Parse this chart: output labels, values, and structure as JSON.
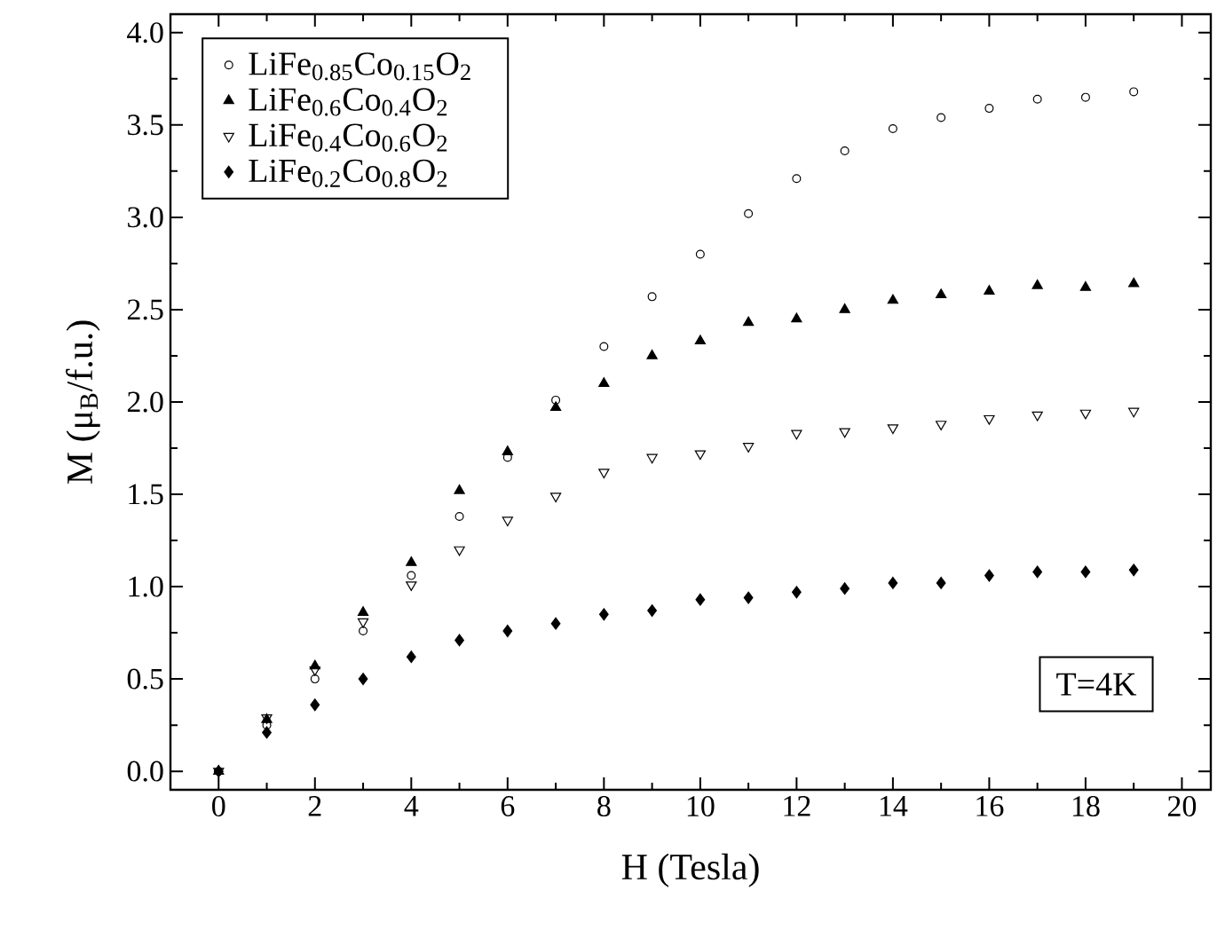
{
  "chart_data": {
    "type": "scatter",
    "xlabel": "H (Tesla)",
    "ylabel": "M (μ$_{B}$/f.u.)",
    "x": [
      0,
      1,
      2,
      3,
      4,
      5,
      6,
      7,
      8,
      9,
      10,
      11,
      12,
      13,
      14,
      15,
      16,
      17,
      18,
      19
    ],
    "series": [
      {
        "name": "LiFe$_{0.85}$Co$_{0.15}$O$_{2}$",
        "color": "#000000",
        "marker": "circle",
        "values": [
          0,
          0.25,
          0.5,
          0.76,
          1.06,
          1.38,
          1.7,
          2.01,
          2.3,
          2.57,
          2.8,
          3.02,
          3.21,
          3.36,
          3.48,
          3.54,
          3.59,
          3.64,
          3.65,
          3.68
        ]
      },
      {
        "name": "LiFe$_{0.6}$Co$_{0.4}$O$_{2}$",
        "color": "#000000",
        "marker": "triangle",
        "values": [
          0,
          0.28,
          0.57,
          0.86,
          1.13,
          1.52,
          1.73,
          1.97,
          2.1,
          2.25,
          2.33,
          2.43,
          2.45,
          2.5,
          2.55,
          2.58,
          2.6,
          2.63,
          2.62,
          2.64
        ]
      },
      {
        "name": "LiFe$_{0.4}$Co$_{0.6}$O$_{2}$",
        "color": "#000000",
        "marker": "triangle",
        "values": [
          0,
          0.29,
          0.55,
          0.81,
          1.01,
          1.2,
          1.36,
          1.49,
          1.62,
          1.7,
          1.72,
          1.76,
          1.83,
          1.84,
          1.86,
          1.88,
          1.91,
          1.93,
          1.94,
          1.95
        ]
      },
      {
        "name": "LiFe$_{0.2}$Co$_{0.8}$O$_{2}$",
        "color": "#000000",
        "marker": "diamond",
        "values": [
          0,
          0.21,
          0.36,
          0.5,
          0.62,
          0.71,
          0.76,
          0.8,
          0.85,
          0.87,
          0.93,
          0.94,
          0.97,
          0.99,
          1.02,
          1.02,
          1.06,
          1.08,
          1.08,
          1.09
        ]
      }
    ],
    "xlim": [
      -1,
      20.6
    ],
    "ylim": [
      -0.1,
      4.1
    ],
    "xticks": [
      0,
      2,
      4,
      6,
      8,
      10,
      12,
      14,
      16,
      18,
      20
    ],
    "yticks": [
      {
        "value": 0,
        "label": "0.0"
      },
      {
        "value": 0.5,
        "label": "0.5"
      },
      {
        "value": 1,
        "label": "1.0"
      },
      {
        "value": 1.5,
        "label": "1.5"
      },
      {
        "value": 2,
        "label": "2.0"
      },
      {
        "value": 2.5,
        "label": "2.5"
      },
      {
        "value": 3,
        "label": "3.0"
      },
      {
        "value": 3.5,
        "label": "3.5"
      },
      {
        "value": 4,
        "label": "4.0"
      }
    ],
    "legend": "top left",
    "grid": false,
    "annotations": [
      "T=4K"
    ]
  }
}
